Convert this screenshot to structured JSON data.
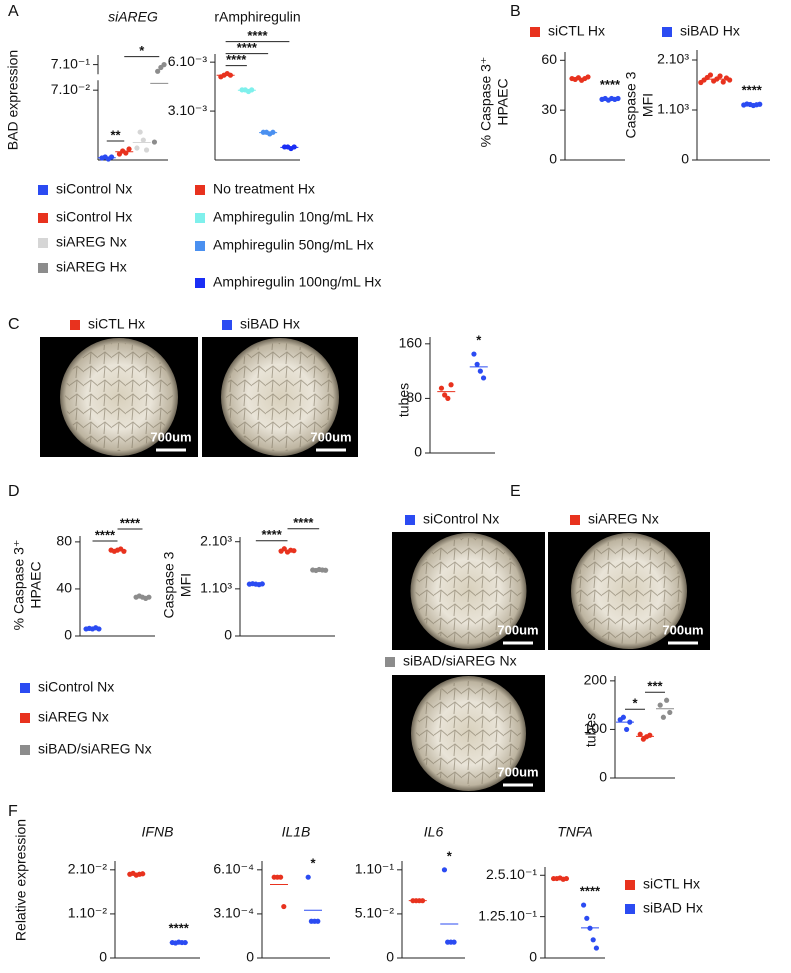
{
  "chart_data": [
    {
      "panel": "A",
      "type": "dot",
      "title": "siAREG",
      "ylabel": [
        "BAD expression"
      ],
      "ylim": [
        0,
        0.8
      ],
      "ybreak": [
        0.08,
        0.6
      ],
      "yticks": [
        {
          "value": 0.07,
          "label": "7.10⁻²"
        },
        {
          "value": 0.7,
          "label": "7.10⁻¹"
        }
      ],
      "series": [
        {
          "name": "siControl Nx",
          "color": "#2b4bf2",
          "values": [
            0.002,
            0.003,
            0.001,
            0.003
          ]
        },
        {
          "name": "siControl Hx",
          "color": "#e8321e",
          "values": [
            0.006,
            0.009,
            0.007,
            0.011
          ]
        },
        {
          "name": "siAREG Nx",
          "color": "#d6d6d6",
          "values": [
            0.012,
            0.028,
            0.02,
            0.01
          ]
        },
        {
          "name": "siAREG Hx",
          "color": "#8c8c8c",
          "values": [
            0.018,
            0.63,
            0.67,
            0.7
          ]
        }
      ],
      "annotations": [
        {
          "text": "**",
          "groups": [
            0,
            1
          ]
        },
        {
          "text": "*",
          "groups": [
            1,
            3
          ]
        }
      ]
    },
    {
      "type": "dot",
      "title": "rAmphiregulin",
      "ylim": [
        0,
        0.0065
      ],
      "yticks": [
        {
          "value": 0.003,
          "label": "3.10⁻³"
        },
        {
          "value": 0.006,
          "label": "6.10⁻³"
        }
      ],
      "series": [
        {
          "name": "No treatment Hx",
          "color": "#e8321e",
          "values": [
            0.0051,
            0.0052,
            0.0053,
            0.0052
          ]
        },
        {
          "name": "Amphiregulin 10ng/mL Hx",
          "color": "#7ff0ec",
          "values": [
            0.0043,
            0.0043,
            0.0042,
            0.0043
          ]
        },
        {
          "name": "Amphiregulin 50ng/mL Hx",
          "color": "#4a90f0",
          "values": [
            0.0017,
            0.0017,
            0.0016,
            0.0017
          ]
        },
        {
          "name": "Amphiregulin 100ng/mL Hx",
          "color": "#1a2ef5",
          "values": [
            0.0008,
            0.0008,
            0.0007,
            0.0008
          ]
        }
      ],
      "annotations": [
        {
          "text": "****",
          "groups": [
            0,
            1
          ]
        },
        {
          "text": "****",
          "groups": [
            0,
            2
          ]
        },
        {
          "text": "****",
          "groups": [
            0,
            3
          ]
        }
      ]
    },
    {
      "panel": "B",
      "type": "dot",
      "ylabel": [
        "% Caspase 3⁺",
        "HPAEC"
      ],
      "ylim": [
        0,
        65
      ],
      "yticks": [
        0,
        30,
        60
      ],
      "series": [
        {
          "name": "siCTL Hx",
          "color": "#e8321e",
          "values": [
            49,
            48.5,
            49.5,
            48,
            49,
            50
          ]
        },
        {
          "name": "siBAD Hx",
          "color": "#2b4bf2",
          "values": [
            36.5,
            37,
            36,
            37,
            36.5,
            37
          ]
        }
      ],
      "annotations": [
        {
          "text": "****",
          "groups": [
            1
          ]
        }
      ]
    },
    {
      "type": "dot",
      "ylabel": [
        "Caspase 3",
        "MFI"
      ],
      "ylim": [
        0,
        2200
      ],
      "yticks": [
        0,
        {
          "value": 1000,
          "label": "1.10³"
        },
        {
          "value": 2000,
          "label": "2.10³"
        }
      ],
      "series": [
        {
          "color": "#e8321e",
          "values": [
            1550,
            1600,
            1650,
            1700,
            1580,
            1620,
            1680,
            1560,
            1640,
            1600
          ]
        },
        {
          "color": "#2b4bf2",
          "values": [
            1100,
            1120,
            1110,
            1090,
            1105,
            1115
          ]
        }
      ],
      "annotations": [
        {
          "text": "****",
          "groups": [
            1
          ]
        }
      ]
    },
    {
      "panel": "C",
      "type": "dot",
      "ylabel": [
        "tubes"
      ],
      "ylim": [
        0,
        170
      ],
      "yticks": [
        0,
        80,
        160
      ],
      "series": [
        {
          "name": "siCTL Hx",
          "color": "#e8321e",
          "values": [
            95,
            85,
            80,
            100
          ]
        },
        {
          "name": "siBAD Hx",
          "color": "#2b4bf2",
          "values": [
            145,
            130,
            120,
            110
          ]
        }
      ],
      "annotations": [
        {
          "text": "*",
          "groups": [
            1
          ]
        }
      ],
      "images": [
        {
          "scale_bar": "700um"
        },
        {
          "scale_bar": "700um"
        }
      ]
    },
    {
      "panel": "D",
      "type": "dot",
      "ylabel": [
        "% Caspase 3⁺",
        "HPAEC"
      ],
      "ylim": [
        0,
        85
      ],
      "yticks": [
        0,
        40,
        80
      ],
      "series": [
        {
          "name": "siControl Nx",
          "color": "#2b4bf2",
          "values": [
            6,
            6.5,
            6,
            7,
            6
          ]
        },
        {
          "name": "siAREG Nx",
          "color": "#e8321e",
          "values": [
            73,
            72,
            73,
            74,
            72
          ]
        },
        {
          "name": "siBAD/siAREG Nx",
          "color": "#8c8c8c",
          "values": [
            33,
            34,
            33,
            32,
            33
          ]
        }
      ],
      "annotations": [
        {
          "text": "****",
          "groups": [
            0,
            1
          ]
        },
        {
          "text": "****",
          "groups": [
            1,
            2
          ]
        }
      ]
    },
    {
      "type": "dot",
      "ylabel": [
        "Caspase 3",
        "MFI"
      ],
      "ylim": [
        0,
        2100
      ],
      "yticks": [
        0,
        {
          "value": 1000,
          "label": "1.10³"
        },
        {
          "value": 2000,
          "label": "2.10³"
        }
      ],
      "series": [
        {
          "color": "#2b4bf2",
          "values": [
            1100,
            1110,
            1100,
            1090,
            1105
          ]
        },
        {
          "color": "#e8321e",
          "values": [
            1800,
            1850,
            1780,
            1820,
            1810
          ]
        },
        {
          "color": "#8c8c8c",
          "values": [
            1400,
            1390,
            1410,
            1400,
            1395
          ]
        }
      ],
      "annotations": [
        {
          "text": "****",
          "groups": [
            0,
            1
          ]
        },
        {
          "text": "****",
          "groups": [
            1,
            2
          ]
        }
      ]
    },
    {
      "panel": "E",
      "type": "dot",
      "ylabel": [
        "tubes"
      ],
      "ylim": [
        0,
        210
      ],
      "yticks": [
        0,
        100,
        200
      ],
      "series": [
        {
          "name": "siControl Nx",
          "color": "#2b4bf2",
          "values": [
            120,
            125,
            100,
            115
          ]
        },
        {
          "name": "siAREG Nx",
          "color": "#e8321e",
          "values": [
            90,
            80,
            85,
            88
          ]
        },
        {
          "name": "siBAD/siAREG Nx",
          "color": "#8c8c8c",
          "values": [
            150,
            125,
            160,
            135
          ]
        }
      ],
      "annotations": [
        {
          "text": "*",
          "groups": [
            0,
            1
          ]
        },
        {
          "text": "***",
          "groups": [
            1,
            2
          ]
        }
      ],
      "images": [
        {
          "scale_bar": "700um"
        },
        {
          "scale_bar": "700um"
        },
        {
          "scale_bar": "700um"
        }
      ]
    },
    {
      "panel": "F",
      "type": "dot",
      "title": "IFNB",
      "ylabel": [
        "Relative expression"
      ],
      "ylim": [
        0,
        0.022
      ],
      "yticks": [
        0,
        {
          "value": 0.01,
          "label": "1.10⁻²"
        },
        {
          "value": 0.02,
          "label": "2.10⁻²"
        }
      ],
      "series": [
        {
          "color": "#e8321e",
          "values": [
            0.019,
            0.0192,
            0.0188,
            0.019,
            0.0191
          ]
        },
        {
          "color": "#2b4bf2",
          "values": [
            0.0035,
            0.0034,
            0.0036,
            0.0035,
            0.0035
          ]
        }
      ],
      "annotations": [
        {
          "text": "****",
          "groups": [
            1
          ]
        }
      ]
    },
    {
      "type": "dot",
      "title": "IL1B",
      "ylim": [
        0,
        0.00066
      ],
      "yticks": [
        0,
        {
          "value": 0.0003,
          "label": "3.10⁻⁴"
        },
        {
          "value": 0.0006,
          "label": "6.10⁻⁴"
        }
      ],
      "series": [
        {
          "color": "#e8321e",
          "values": [
            0.00055,
            0.00055,
            0.00055,
            0.00035
          ]
        },
        {
          "color": "#2b4bf2",
          "values": [
            0.00055,
            0.00025,
            0.00025,
            0.00025
          ]
        }
      ],
      "annotations": [
        {
          "text": "*",
          "groups": [
            1
          ]
        }
      ]
    },
    {
      "type": "dot",
      "title": "IL6",
      "ylim": [
        0,
        0.11
      ],
      "yticks": [
        0,
        {
          "value": 0.05,
          "label": "5.10⁻²"
        },
        {
          "value": 0.1,
          "label": "1.10⁻¹"
        }
      ],
      "series": [
        {
          "color": "#e8321e",
          "values": [
            0.065,
            0.065,
            0.065,
            0.065
          ]
        },
        {
          "color": "#2b4bf2",
          "values": [
            0.1,
            0.018,
            0.018,
            0.018
          ]
        }
      ],
      "annotations": [
        {
          "text": "*",
          "groups": [
            1
          ]
        }
      ]
    },
    {
      "type": "dot",
      "title": "TNFA",
      "ylim": [
        0,
        0.275
      ],
      "yticks": [
        0,
        {
          "value": 0.125,
          "label": "1.25.10⁻¹"
        },
        {
          "value": 0.25,
          "label": "2.5.10⁻¹"
        }
      ],
      "series": [
        {
          "name": "siCTL Hx",
          "color": "#e8321e",
          "values": [
            0.24,
            0.24,
            0.242,
            0.238,
            0.24
          ]
        },
        {
          "name": "siBAD Hx",
          "color": "#2b4bf2",
          "values": [
            0.16,
            0.12,
            0.09,
            0.055,
            0.03
          ]
        }
      ],
      "annotations": [
        {
          "text": "****",
          "groups": [
            1
          ]
        }
      ]
    }
  ]
}
